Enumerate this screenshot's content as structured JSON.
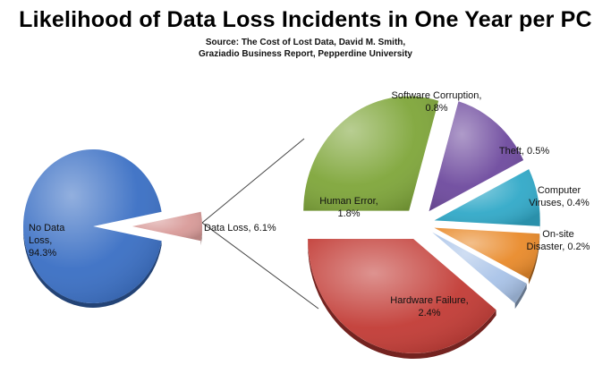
{
  "chart_data": {
    "type": "pie",
    "variant": "bar-of-pie (exploded)",
    "title": "Likelihood of Data Loss Incidents in One Year per PC",
    "subtitle": [
      "Source: The Cost of Lost Data, David M. Smith,",
      "Graziadio Business Report, Pepperdine University"
    ],
    "main_pie": [
      {
        "label_lines": [
          "No Data",
          "Loss,",
          "94.3%"
        ],
        "name": "No Data Loss",
        "value": 94.3,
        "color": "#3A6FC4"
      },
      {
        "label_lines": [
          "Data Loss, 6.1%"
        ],
        "name": "Data Loss",
        "value": 6.1,
        "color": "#D89A98"
      }
    ],
    "breakdown_pie": [
      {
        "label_lines": [
          "Human Error,",
          "1.8%"
        ],
        "name": "Human Error",
        "value": 1.8,
        "color": "#7FA63A"
      },
      {
        "label_lines": [
          "Software Corruption,",
          "0.8%"
        ],
        "name": "Software Corruption",
        "value": 0.8,
        "color": "#6E4A9E"
      },
      {
        "label_lines": [
          "Theft, 0.5%"
        ],
        "name": "Theft",
        "value": 0.5,
        "color": "#31A9C8"
      },
      {
        "label_lines": [
          "Computer",
          "Viruses, 0.4%"
        ],
        "name": "Computer Viruses",
        "value": 0.4,
        "color": "#E98A2A"
      },
      {
        "label_lines": [
          "On-site",
          "Disaster, 0.2%"
        ],
        "name": "On-site Disaster",
        "value": 0.2,
        "color": "#A9C3E8"
      },
      {
        "label_lines": [
          "Hardware Failure,",
          "2.4%"
        ],
        "name": "Hardware Failure",
        "value": 2.4,
        "color": "#C23B35"
      }
    ],
    "legend": "none",
    "grid": false
  }
}
